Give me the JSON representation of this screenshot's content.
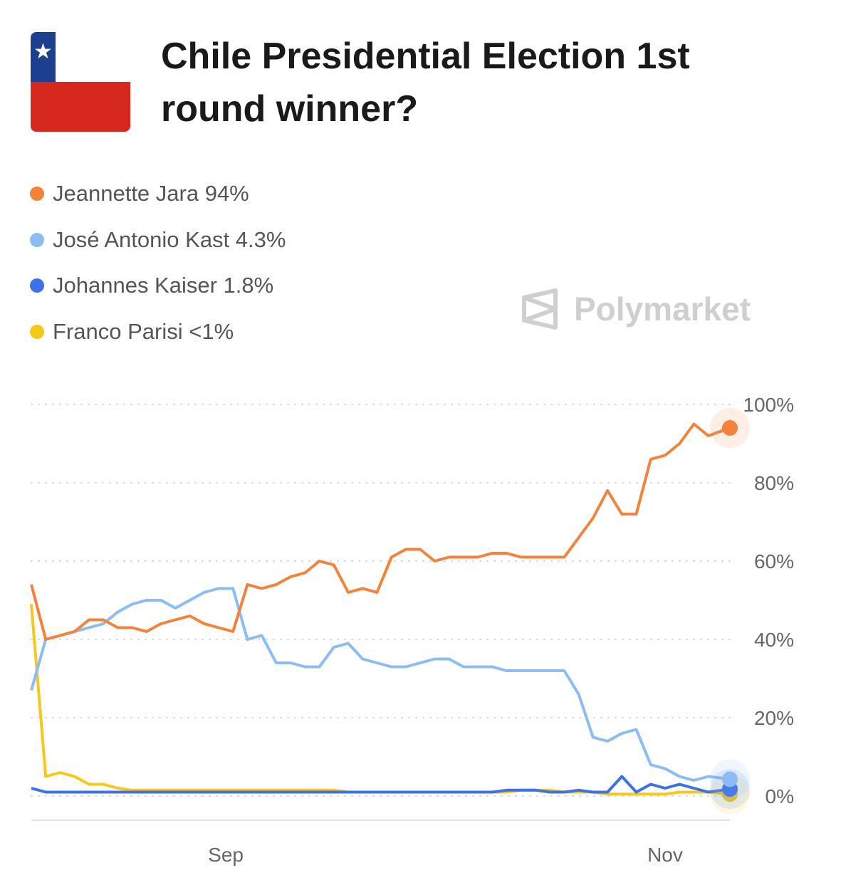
{
  "header": {
    "title": "Chile Presidential Election 1st round winner?",
    "flag_icon": "chile-flag-icon",
    "flag_colors": {
      "blue": "#1d3f8f",
      "white": "#ffffff",
      "red": "#d7281d"
    }
  },
  "legend": [
    {
      "label": "Jeannette Jara 94%",
      "color": "#F5823A"
    },
    {
      "label": "José Antonio Kast 4.3%",
      "color": "#8BBCF4"
    },
    {
      "label": "Johannes Kaiser 1.8%",
      "color": "#3E71E8"
    },
    {
      "label": "Franco Parisi <1%",
      "color": "#F7C81A"
    }
  ],
  "watermark": {
    "text": "Polymarket",
    "icon": "polymarket-logo-icon"
  },
  "chart_data": {
    "type": "line",
    "title": "",
    "xlabel": "",
    "ylabel": "",
    "ylim": [
      0,
      100
    ],
    "y_ticks": [
      "0%",
      "20%",
      "40%",
      "60%",
      "80%",
      "100%"
    ],
    "y_tick_values": [
      0,
      20,
      40,
      60,
      80,
      100
    ],
    "x_ticks": [
      {
        "label": "Sep",
        "date": "2025-09-01"
      },
      {
        "label": "Nov",
        "date": "2025-11-01"
      }
    ],
    "grid": "horizontal-dotted",
    "y_axis_position": "right",
    "x": [
      "2025-08-05",
      "2025-08-07",
      "2025-08-09",
      "2025-08-11",
      "2025-08-13",
      "2025-08-15",
      "2025-08-17",
      "2025-08-19",
      "2025-08-21",
      "2025-08-23",
      "2025-08-25",
      "2025-08-27",
      "2025-08-29",
      "2025-08-31",
      "2025-09-02",
      "2025-09-04",
      "2025-09-06",
      "2025-09-08",
      "2025-09-10",
      "2025-09-12",
      "2025-09-14",
      "2025-09-16",
      "2025-09-18",
      "2025-09-20",
      "2025-09-22",
      "2025-09-24",
      "2025-09-26",
      "2025-09-28",
      "2025-09-30",
      "2025-10-02",
      "2025-10-04",
      "2025-10-06",
      "2025-10-08",
      "2025-10-10",
      "2025-10-12",
      "2025-10-14",
      "2025-10-16",
      "2025-10-18",
      "2025-10-20",
      "2025-10-22",
      "2025-10-24",
      "2025-10-26",
      "2025-10-28",
      "2025-10-30",
      "2025-11-01",
      "2025-11-03",
      "2025-11-05",
      "2025-11-07",
      "2025-11-10"
    ],
    "series": [
      {
        "name": "Jeannette Jara",
        "color": "#F5823A",
        "values": [
          54,
          40,
          41,
          42,
          45,
          45,
          43,
          43,
          42,
          44,
          45,
          46,
          44,
          43,
          42,
          54,
          53,
          54,
          56,
          57,
          60,
          59,
          52,
          53,
          52,
          61,
          63,
          63,
          60,
          61,
          61,
          61,
          62,
          62,
          61,
          61,
          61,
          61,
          66,
          71,
          78,
          72,
          72,
          86,
          87,
          90,
          95,
          92,
          94
        ]
      },
      {
        "name": "José Antonio Kast",
        "color": "#8BBCF4",
        "values": [
          27,
          40,
          41,
          42,
          43,
          44,
          47,
          49,
          50,
          50,
          48,
          50,
          52,
          53,
          53,
          40,
          41,
          34,
          34,
          33,
          33,
          38,
          39,
          35,
          34,
          33,
          33,
          34,
          35,
          35,
          33,
          33,
          33,
          32,
          32,
          32,
          32,
          32,
          26,
          15,
          14,
          16,
          17,
          8,
          7,
          5,
          4,
          5,
          4.3
        ]
      },
      {
        "name": "Johannes Kaiser",
        "color": "#3E71E8",
        "values": [
          2,
          1,
          1,
          1,
          1,
          1,
          1,
          1,
          1,
          1,
          1,
          1,
          1,
          1,
          1,
          1,
          1,
          1,
          1,
          1,
          1,
          1,
          1,
          1,
          1,
          1,
          1,
          1,
          1,
          1,
          1,
          1,
          1,
          1.5,
          1.5,
          1.5,
          1,
          1,
          1.5,
          1,
          1,
          5,
          1,
          3,
          2,
          3,
          2,
          1,
          1.8
        ]
      },
      {
        "name": "Franco Parisi",
        "color": "#F7C81A",
        "values": [
          49,
          5,
          6,
          5,
          3,
          3,
          2,
          1.5,
          1.5,
          1.5,
          1.5,
          1.5,
          1.5,
          1.5,
          1.5,
          1.5,
          1.5,
          1.5,
          1.5,
          1.5,
          1.5,
          1.5,
          1,
          1,
          1,
          1,
          1,
          1,
          1,
          1,
          1,
          1,
          1,
          1,
          1.5,
          1.5,
          1.5,
          1,
          1,
          1,
          0.5,
          0.5,
          0.5,
          0.5,
          0.5,
          1,
          1,
          1,
          0.5
        ]
      }
    ]
  }
}
